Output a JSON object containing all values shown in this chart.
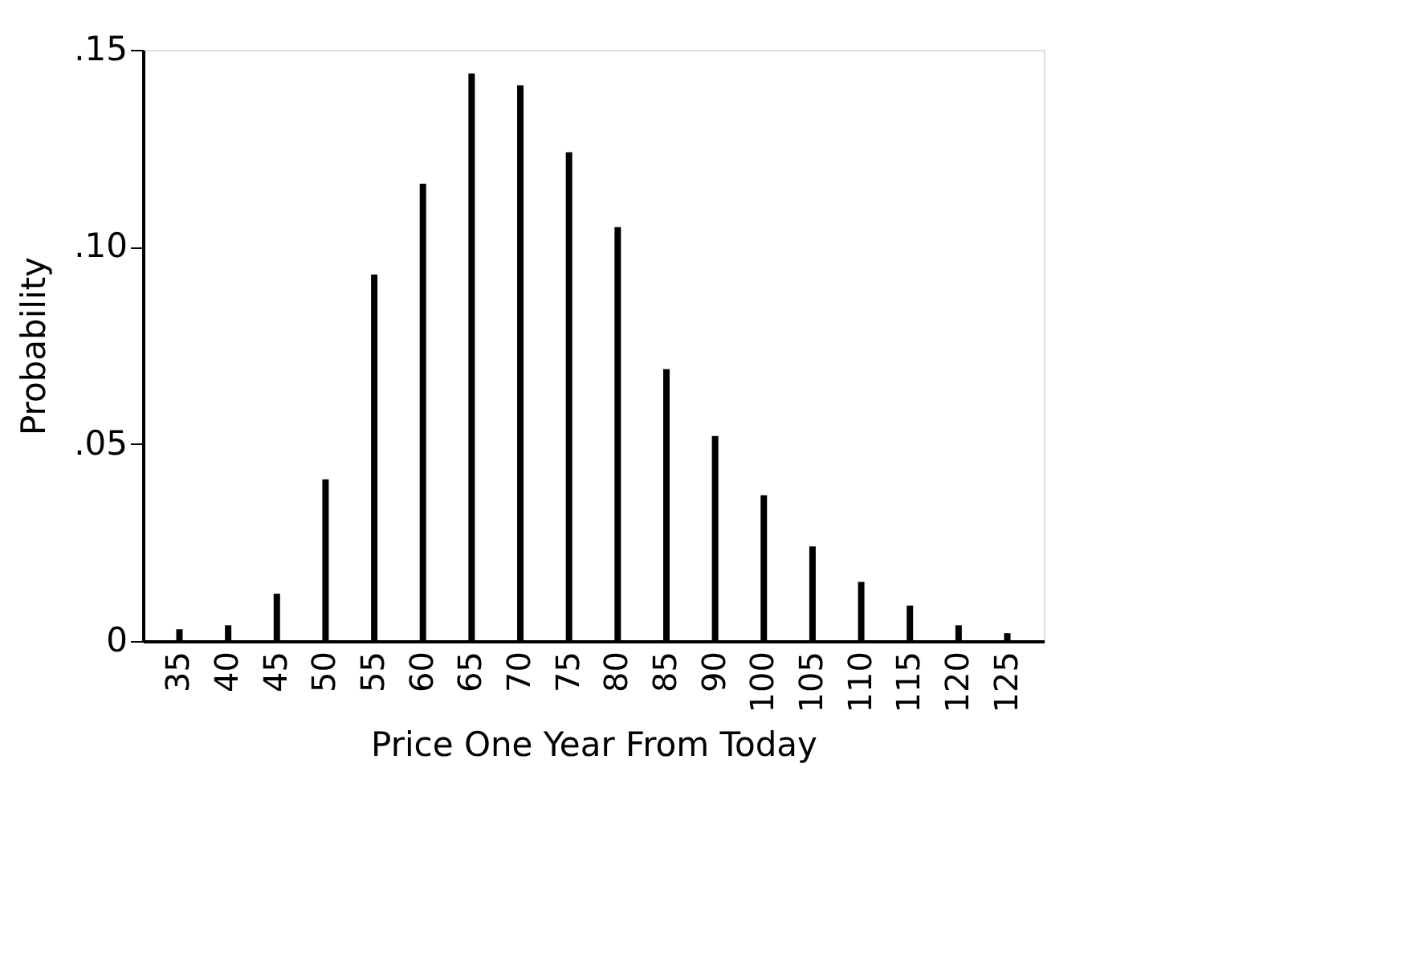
{
  "chart_data": {
    "type": "bar",
    "xlabel": "Price One Year From Today",
    "ylabel": "Probability",
    "categories": [
      "35",
      "40",
      "45",
      "50",
      "55",
      "60",
      "65",
      "70",
      "75",
      "80",
      "85",
      "90",
      "100",
      "105",
      "110",
      "115",
      "120",
      "125"
    ],
    "values": [
      0.003,
      0.004,
      0.012,
      0.041,
      0.093,
      0.116,
      0.144,
      0.141,
      0.124,
      0.105,
      0.069,
      0.052,
      0.037,
      0.024,
      0.015,
      0.009,
      0.004,
      0.002
    ],
    "color": "#000000",
    "ylim": [
      0,
      0.15
    ],
    "yticks": [
      0,
      {
        "value": 0.05,
        "label": ".05"
      },
      {
        "value": 0.1,
        "label": ".10"
      },
      {
        "value": 0.15,
        "label": ".15"
      }
    ],
    "grid": false
  }
}
